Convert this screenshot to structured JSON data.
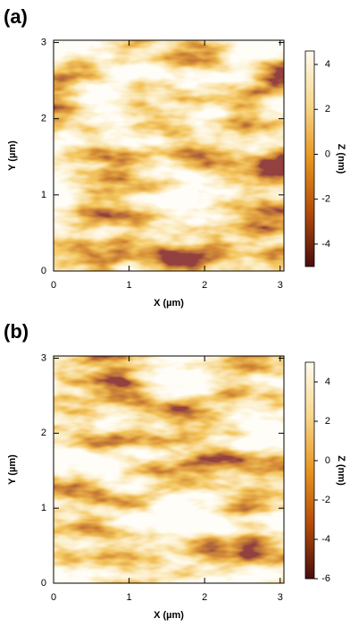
{
  "chart_data": [
    {
      "type": "heatmap",
      "panel_label": "(a)",
      "x_label": "X (µm)",
      "y_label": "Y (µm)",
      "xlim": [
        0,
        3.05
      ],
      "ylim": [
        0,
        3.03
      ],
      "xticks": [
        0,
        1,
        2,
        3
      ],
      "yticks": [
        0,
        1,
        2,
        3
      ],
      "colorbar": {
        "label": "Z (nm)",
        "zlim": [
          -5.0,
          4.6
        ],
        "zticks": [
          -4,
          -2,
          0,
          2,
          4
        ],
        "colors": [
          "#4a0d0d",
          "#b34a0a",
          "#e8951f",
          "#f7d78a",
          "#fffbee"
        ]
      }
    },
    {
      "type": "heatmap",
      "panel_label": "(b)",
      "x_label": "X (µm)",
      "y_label": "Y (µm)",
      "xlim": [
        0,
        3.05
      ],
      "ylim": [
        0,
        3.03
      ],
      "xticks": [
        0,
        1,
        2,
        3
      ],
      "yticks": [
        0,
        1,
        2,
        3
      ],
      "colorbar": {
        "label": "Z (nm)",
        "zlim": [
          -6,
          5.0
        ],
        "zticks": [
          -6,
          -4,
          -2,
          0,
          2,
          4
        ],
        "colors": [
          "#4a0d0d",
          "#b34a0a",
          "#e8951f",
          "#f7d78a",
          "#fffbee"
        ]
      }
    }
  ]
}
